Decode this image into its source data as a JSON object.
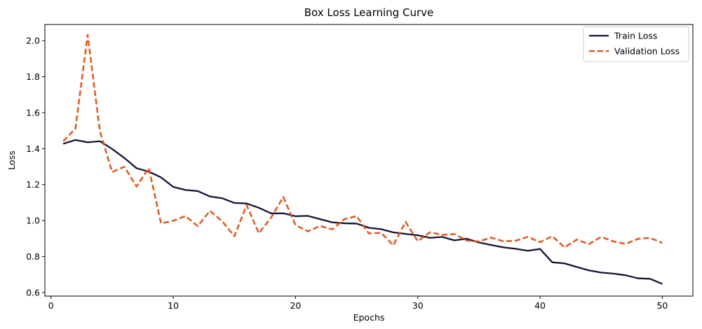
{
  "chart_data": {
    "type": "line",
    "title": "Box Loss Learning Curve",
    "xlabel": "Epochs",
    "ylabel": "Loss",
    "xlim": [
      -0.5,
      52.5
    ],
    "ylim": [
      0.58,
      2.09
    ],
    "xticks": [
      0,
      10,
      20,
      30,
      40,
      50
    ],
    "yticks": [
      0.6,
      0.8,
      1.0,
      1.2,
      1.4,
      1.6,
      1.8,
      2.0
    ],
    "ytick_labels": [
      "0.6",
      "0.8",
      "1.0",
      "1.2",
      "1.4",
      "1.6",
      "1.8",
      "2.0"
    ],
    "grid": false,
    "legend_position": "top-right",
    "x": [
      1,
      2,
      3,
      4,
      5,
      6,
      7,
      8,
      9,
      10,
      11,
      12,
      13,
      14,
      15,
      16,
      17,
      18,
      19,
      20,
      21,
      22,
      23,
      24,
      25,
      26,
      27,
      28,
      29,
      30,
      31,
      32,
      33,
      34,
      35,
      36,
      37,
      38,
      39,
      40,
      41,
      42,
      43,
      44,
      45,
      46,
      47,
      48,
      49,
      50
    ],
    "series": [
      {
        "name": "Train Loss",
        "color": "#14123b",
        "dash": "solid",
        "values": [
          1.427,
          1.448,
          1.435,
          1.441,
          1.398,
          1.348,
          1.291,
          1.272,
          1.24,
          1.187,
          1.17,
          1.164,
          1.134,
          1.124,
          1.098,
          1.095,
          1.071,
          1.04,
          1.04,
          1.024,
          1.026,
          1.008,
          0.99,
          0.985,
          0.983,
          0.96,
          0.952,
          0.934,
          0.926,
          0.918,
          0.904,
          0.909,
          0.89,
          0.899,
          0.878,
          0.864,
          0.851,
          0.843,
          0.832,
          0.842,
          0.768,
          0.762,
          0.742,
          0.723,
          0.711,
          0.705,
          0.696,
          0.679,
          0.676,
          0.648
        ]
      },
      {
        "name": "Validation Loss",
        "color": "#ff4500",
        "dash": "dashed",
        "values": [
          1.441,
          1.511,
          2.032,
          1.497,
          1.27,
          1.299,
          1.189,
          1.292,
          0.984,
          0.999,
          1.025,
          0.969,
          1.054,
          0.996,
          0.913,
          1.086,
          0.929,
          1.016,
          1.131,
          0.975,
          0.94,
          0.97,
          0.951,
          1.008,
          1.025,
          0.928,
          0.932,
          0.862,
          0.993,
          0.885,
          0.935,
          0.92,
          0.925,
          0.889,
          0.884,
          0.905,
          0.885,
          0.888,
          0.909,
          0.88,
          0.913,
          0.851,
          0.894,
          0.869,
          0.909,
          0.884,
          0.87,
          0.898,
          0.904,
          0.876
        ]
      }
    ]
  }
}
